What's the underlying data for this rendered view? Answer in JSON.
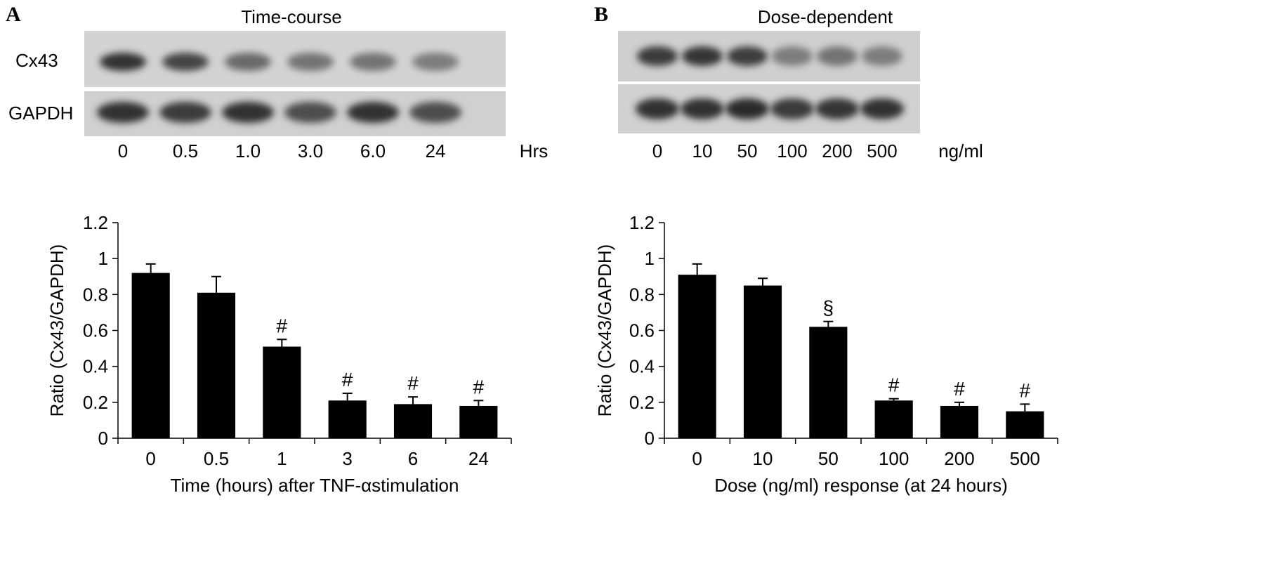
{
  "panels": [
    {
      "letter": "A",
      "blot": {
        "title": "Time-course",
        "rows": [
          "Cx43",
          "GAPDH"
        ],
        "lanes": [
          "0",
          "0.5",
          "1.0",
          "3.0",
          "6.0",
          "24"
        ],
        "unit": "Hrs",
        "cx43_band_intensity": [
          0.85,
          0.75,
          0.55,
          0.5,
          0.5,
          0.45
        ],
        "gapdh_band_intensity": [
          0.85,
          0.8,
          0.85,
          0.7,
          0.85,
          0.7
        ]
      }
    },
    {
      "letter": "B",
      "blot": {
        "title": "Dose-dependent",
        "rows": [],
        "lanes": [
          "0",
          "10",
          "50",
          "100",
          "200",
          "500"
        ],
        "unit": "ng/ml",
        "cx43_band_intensity": [
          0.8,
          0.82,
          0.78,
          0.45,
          0.5,
          0.45
        ],
        "gapdh_band_intensity": [
          0.85,
          0.85,
          0.88,
          0.8,
          0.82,
          0.85
        ]
      }
    }
  ],
  "chart_data": [
    {
      "type": "bar",
      "title": "",
      "xlabel": "Time (hours) after TNF-αstimulation",
      "ylabel": "Ratio (Cx43/GAPDH)",
      "categories": [
        "0",
        "0.5",
        "1",
        "3",
        "6",
        "24"
      ],
      "values": [
        0.92,
        0.81,
        0.51,
        0.21,
        0.19,
        0.18
      ],
      "errors": [
        0.05,
        0.09,
        0.04,
        0.04,
        0.04,
        0.03
      ],
      "annotations": [
        "",
        "",
        "#",
        "#",
        "#",
        "#"
      ],
      "yticks": [
        "0",
        "0.2",
        "0.4",
        "0.6",
        "0.8",
        "1",
        "1.2"
      ],
      "ylim": [
        0,
        1.2
      ],
      "grid": false,
      "legend": "none",
      "bar_color": "#000000"
    },
    {
      "type": "bar",
      "title": "",
      "xlabel": "Dose (ng/ml) response (at 24 hours)",
      "ylabel": "Ratio (Cx43/GAPDH)",
      "categories": [
        "0",
        "10",
        "50",
        "100",
        "200",
        "500"
      ],
      "values": [
        0.91,
        0.85,
        0.62,
        0.21,
        0.18,
        0.15
      ],
      "errors": [
        0.06,
        0.04,
        0.03,
        0.01,
        0.02,
        0.04
      ],
      "annotations": [
        "",
        "",
        "§",
        "#",
        "#",
        "#"
      ],
      "yticks": [
        "0",
        "0.2",
        "0.4",
        "0.6",
        "0.8",
        "1",
        "1.2"
      ],
      "ylim": [
        0,
        1.2
      ],
      "grid": false,
      "legend": "none",
      "bar_color": "#000000"
    }
  ]
}
